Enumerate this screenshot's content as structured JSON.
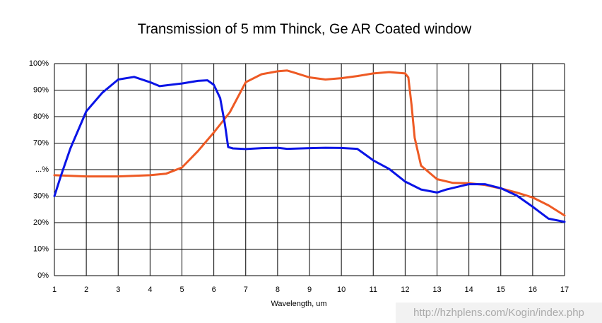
{
  "chart_data": {
    "type": "line",
    "title": "Transmission of 5 mm Thinck, Ge AR Coated window",
    "x_label": "Wavelength, um",
    "annotation": "http://hzhplens.com/Kogin/index.php",
    "xlim": [
      1,
      17
    ],
    "xticks": [
      1,
      2,
      3,
      4,
      5,
      6,
      7,
      8,
      9,
      10,
      11,
      12,
      13,
      14,
      15,
      16,
      17
    ],
    "ylim": [
      0,
      100
    ],
    "yticks": [
      {
        "value": 0,
        "label": "0%"
      },
      {
        "value": 10,
        "label": "10%"
      },
      {
        "value": 20,
        "label": "20%"
      },
      {
        "value": 30,
        "label": "30%"
      },
      {
        "value": 50,
        "label": "...%"
      },
      {
        "value": 70,
        "label": "70%"
      },
      {
        "value": 80,
        "label": "80%"
      },
      {
        "value": 90,
        "label": "90%"
      },
      {
        "value": 100,
        "label": "100%"
      }
    ],
    "grid": true,
    "series": [
      {
        "name": "Blue",
        "color": "#0a14e6",
        "x": [
          1,
          1.2,
          1.5,
          2,
          2.5,
          3,
          3.5,
          4,
          4.3,
          5,
          5.5,
          5.8,
          6,
          6.2,
          6.35,
          6.45,
          6.6,
          7,
          7.5,
          8,
          8.3,
          9,
          9.5,
          10,
          10.5,
          11,
          11.5,
          12,
          12.5,
          13,
          13.3,
          14,
          14.5,
          15,
          15.5,
          16,
          16.5,
          17
        ],
        "values": [
          30,
          45,
          66,
          82,
          89,
          94,
          95,
          93,
          91.5,
          92.5,
          93.5,
          93.7,
          92,
          87,
          77,
          67,
          66,
          65.5,
          66.2,
          66.5,
          65.7,
          66.2,
          66.5,
          66.3,
          65.7,
          57,
          50.5,
          41,
          35,
          32.7,
          35,
          39,
          39,
          36,
          30.5,
          26,
          21.5,
          20.3
        ]
      },
      {
        "name": "Orange",
        "color": "#ee5a24",
        "x": [
          1,
          2,
          3,
          4,
          4.5,
          5,
          5.5,
          6,
          6.5,
          7,
          7.5,
          8,
          8.3,
          8.5,
          9,
          9.5,
          10,
          10.5,
          11,
          11.5,
          12,
          12.1,
          12.2,
          12.3,
          12.5,
          13,
          13.5,
          14,
          14.5,
          15,
          15.5,
          16,
          16.5,
          17
        ],
        "values": [
          45.8,
          44.9,
          44.9,
          45.8,
          46.9,
          51.6,
          64,
          74,
          81.6,
          93,
          96,
          97.1,
          97.4,
          96.7,
          94.8,
          94,
          94.5,
          95.3,
          96.3,
          96.8,
          96.3,
          94.8,
          84.5,
          72,
          53,
          42.8,
          40,
          39.7,
          38.5,
          35.8,
          32.7,
          29.5,
          26.5,
          22.7
        ]
      }
    ]
  }
}
